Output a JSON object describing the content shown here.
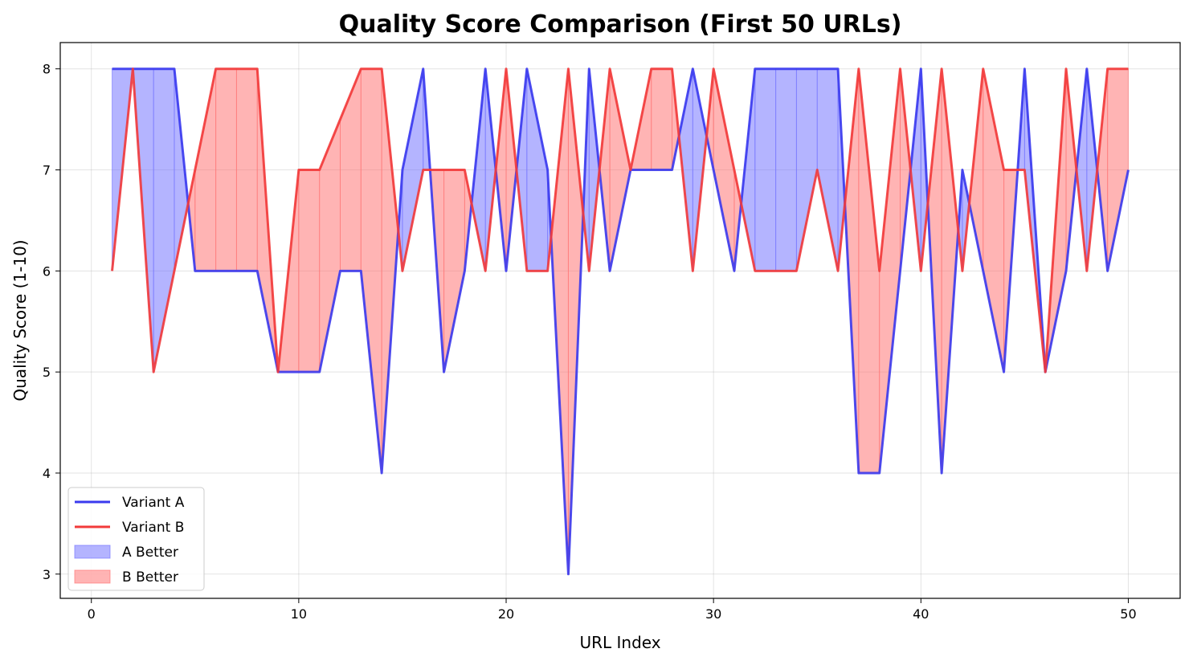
{
  "chart_data": {
    "type": "line",
    "title": "Quality Score Comparison (First 50 URLs)",
    "xlabel": "URL Index",
    "ylabel": "Quality Score (1-10)",
    "xlim": [
      -1.5,
      52.5
    ],
    "ylim": [
      2.76,
      8.26
    ],
    "xticks": [
      0,
      10,
      20,
      30,
      40,
      50
    ],
    "yticks": [
      3,
      4,
      5,
      6,
      7,
      8
    ],
    "grid": true,
    "legend_position": "lower-left",
    "x": [
      1,
      2,
      3,
      4,
      5,
      6,
      7,
      8,
      9,
      10,
      11,
      12,
      13,
      14,
      15,
      16,
      17,
      18,
      19,
      20,
      21,
      22,
      23,
      24,
      25,
      26,
      27,
      28,
      29,
      30,
      31,
      32,
      33,
      34,
      35,
      36,
      37,
      38,
      39,
      40,
      41,
      42,
      43,
      44,
      45,
      46,
      47,
      48,
      49,
      50
    ],
    "series": [
      {
        "name": "Variant A",
        "color": "#3a3aee",
        "values": [
          8,
          8,
          8,
          8,
          6,
          6,
          6,
          6,
          5,
          5,
          5,
          6,
          6,
          4,
          7,
          8,
          5,
          6,
          8,
          6,
          8,
          7,
          3,
          8,
          6,
          7,
          7,
          7,
          8,
          7,
          6,
          8,
          8,
          8,
          8,
          8,
          4,
          4,
          6,
          8,
          4,
          7,
          6,
          5,
          8,
          5,
          6,
          8,
          6,
          7
        ]
      },
      {
        "name": "Variant B",
        "color": "#f23a3a",
        "values": [
          6,
          8,
          5,
          6,
          7,
          8,
          8,
          8,
          5,
          7,
          7,
          7.5,
          8,
          8,
          6,
          7,
          7,
          7,
          6,
          8,
          6,
          6,
          8,
          6,
          8,
          7,
          8,
          8,
          6,
          8,
          7,
          6,
          6,
          6,
          7,
          6,
          8,
          6,
          8,
          6,
          8,
          6,
          8,
          7,
          7,
          5,
          8,
          6,
          8,
          8
        ]
      }
    ],
    "fills": [
      {
        "name": "A Better",
        "color": "#7777ff"
      },
      {
        "name": "B Better",
        "color": "#ff7777"
      }
    ]
  }
}
